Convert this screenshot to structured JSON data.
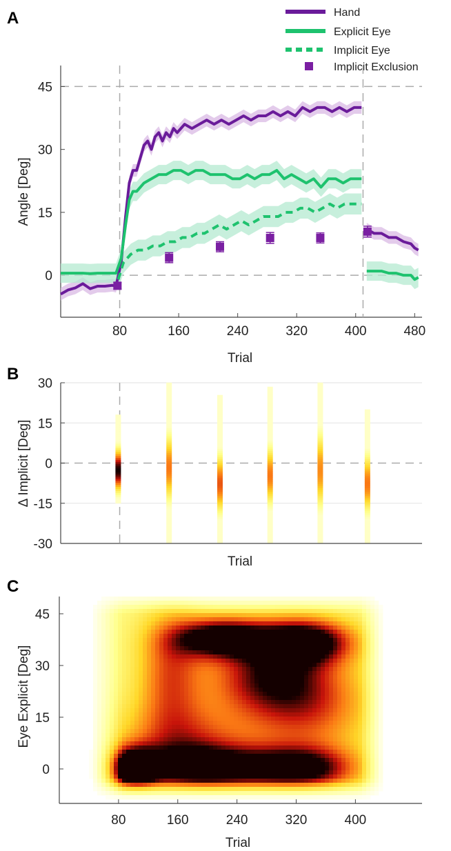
{
  "chart_data": [
    {
      "panel": "A",
      "type": "line",
      "xlabel": "Trial",
      "ylabel": "Angle [Deg]",
      "xlim": [
        0,
        490
      ],
      "ylim": [
        -10,
        50
      ],
      "x_ticks": [
        "80",
        "160",
        "240",
        "320",
        "400",
        "480"
      ],
      "y_ticks": [
        "45",
        "30",
        "15",
        "0"
      ],
      "reference_lines": {
        "x": [
          80,
          410
        ],
        "y": [
          45,
          0
        ]
      },
      "legend_placement": "top-right",
      "colors": {
        "hand": "#6a1b9a",
        "hand_band": "#d9b9e4",
        "eye": "#1ec26e",
        "eye_band": "#b4ead0",
        "exclusion": "#7a1fa2"
      },
      "series": [
        {
          "name": "Hand",
          "style": "solid",
          "points": [
            [
              0,
              -4.5
            ],
            [
              10,
              -3.5
            ],
            [
              20,
              -3
            ],
            [
              30,
              -2
            ],
            [
              40,
              -3.2
            ],
            [
              50,
              -2.6
            ],
            [
              60,
              -2.6
            ],
            [
              70,
              -2.4
            ],
            [
              75,
              -2.6
            ],
            [
              82,
              3
            ],
            [
              88,
              14
            ],
            [
              93,
              22
            ],
            [
              98,
              25
            ],
            [
              103,
              25
            ],
            [
              108,
              28
            ],
            [
              113,
              31
            ],
            [
              118,
              32
            ],
            [
              123,
              30
            ],
            [
              128,
              33
            ],
            [
              133,
              34
            ],
            [
              138,
              32
            ],
            [
              143,
              34
            ],
            [
              148,
              33
            ],
            [
              153,
              35
            ],
            [
              158,
              34
            ],
            [
              163,
              35
            ],
            [
              168,
              36
            ],
            [
              178,
              35
            ],
            [
              188,
              36
            ],
            [
              198,
              37
            ],
            [
              208,
              36
            ],
            [
              218,
              37
            ],
            [
              228,
              36
            ],
            [
              238,
              37
            ],
            [
              248,
              38
            ],
            [
              258,
              37
            ],
            [
              268,
              38
            ],
            [
              278,
              38
            ],
            [
              288,
              39
            ],
            [
              298,
              38
            ],
            [
              308,
              39
            ],
            [
              318,
              38
            ],
            [
              328,
              40
            ],
            [
              338,
              39
            ],
            [
              348,
              40
            ],
            [
              358,
              40
            ],
            [
              368,
              39
            ],
            [
              378,
              40
            ],
            [
              388,
              39
            ],
            [
              398,
              40
            ],
            [
              408,
              40
            ],
            [
              415,
              11
            ],
            [
              425,
              10
            ],
            [
              435,
              10
            ],
            [
              445,
              9
            ],
            [
              455,
              9
            ],
            [
              465,
              8
            ],
            [
              475,
              7.5
            ],
            [
              480,
              6.5
            ],
            [
              485,
              6
            ]
          ],
          "band_halfwidth": 1.5
        },
        {
          "name": "Explicit Eye",
          "style": "solid",
          "points": [
            [
              0,
              0.5
            ],
            [
              10,
              0.5
            ],
            [
              20,
              0.5
            ],
            [
              30,
              0.5
            ],
            [
              40,
              0.4
            ],
            [
              50,
              0.5
            ],
            [
              60,
              0.5
            ],
            [
              70,
              0.5
            ],
            [
              75,
              0.5
            ],
            [
              82,
              4
            ],
            [
              88,
              12
            ],
            [
              93,
              18
            ],
            [
              98,
              20
            ],
            [
              103,
              20
            ],
            [
              113,
              22
            ],
            [
              123,
              23
            ],
            [
              133,
              24
            ],
            [
              143,
              24
            ],
            [
              153,
              25
            ],
            [
              163,
              25
            ],
            [
              173,
              24
            ],
            [
              183,
              25
            ],
            [
              193,
              25
            ],
            [
              203,
              24
            ],
            [
              213,
              24
            ],
            [
              223,
              24
            ],
            [
              233,
              23
            ],
            [
              243,
              23
            ],
            [
              253,
              24
            ],
            [
              263,
              23
            ],
            [
              273,
              24
            ],
            [
              283,
              24
            ],
            [
              293,
              25
            ],
            [
              303,
              23
            ],
            [
              313,
              24
            ],
            [
              323,
              23
            ],
            [
              333,
              22
            ],
            [
              343,
              23
            ],
            [
              353,
              21
            ],
            [
              363,
              23
            ],
            [
              373,
              23
            ],
            [
              383,
              22
            ],
            [
              393,
              23
            ],
            [
              403,
              23
            ],
            [
              408,
              23
            ],
            [
              415,
              1
            ],
            [
              425,
              1
            ],
            [
              435,
              1
            ],
            [
              445,
              0.5
            ],
            [
              455,
              0.5
            ],
            [
              465,
              0
            ],
            [
              475,
              0
            ],
            [
              480,
              -1
            ],
            [
              485,
              -0.5
            ]
          ],
          "band_halfwidth": 2.3
        },
        {
          "name": "Implicit Eye",
          "style": "dashed",
          "points": [
            [
              78,
              -1
            ],
            [
              85,
              3
            ],
            [
              95,
              5
            ],
            [
              105,
              6
            ],
            [
              115,
              6
            ],
            [
              125,
              7
            ],
            [
              135,
              7
            ],
            [
              145,
              8
            ],
            [
              155,
              8
            ],
            [
              165,
              9
            ],
            [
              175,
              9
            ],
            [
              185,
              10
            ],
            [
              195,
              10
            ],
            [
              205,
              11
            ],
            [
              215,
              12
            ],
            [
              225,
              11
            ],
            [
              235,
              12
            ],
            [
              245,
              13
            ],
            [
              255,
              12
            ],
            [
              265,
              13
            ],
            [
              275,
              14
            ],
            [
              285,
              14
            ],
            [
              295,
              14
            ],
            [
              305,
              15
            ],
            [
              315,
              15
            ],
            [
              325,
              16
            ],
            [
              335,
              16
            ],
            [
              345,
              15
            ],
            [
              355,
              16
            ],
            [
              365,
              17
            ],
            [
              375,
              16
            ],
            [
              385,
              17
            ],
            [
              395,
              17
            ],
            [
              405,
              17
            ],
            [
              408,
              17
            ]
          ],
          "band_halfwidth": 2.5
        },
        {
          "name": "Implicit Exclusion",
          "style": "markers",
          "points": [
            [
              77,
              -2.5
            ],
            [
              147,
              4.2
            ],
            [
              216,
              6.8
            ],
            [
              284,
              8.9
            ],
            [
              352,
              8.9
            ],
            [
              416,
              10.4
            ]
          ],
          "errors": [
            0.8,
            1.2,
            1.2,
            1.3,
            1.2,
            1.3
          ]
        }
      ]
    },
    {
      "panel": "B",
      "type": "heatmap",
      "xlabel": "Trial",
      "ylabel": "Δ Implicit [Deg]",
      "ylim": [
        -30,
        30
      ],
      "y_ticks": [
        "30",
        "15",
        "0",
        "-15",
        "-30"
      ],
      "columns": [
        {
          "x": 78,
          "center": -3,
          "spread": 5,
          "peak": 1.0,
          "ymin": -15,
          "ymax": 18
        },
        {
          "x": 147,
          "center": -2,
          "spread": 8,
          "peak": 0.62,
          "ymin": -30,
          "ymax": 30
        },
        {
          "x": 216,
          "center": -8,
          "spread": 7,
          "peak": 0.68,
          "ymin": -30,
          "ymax": 25
        },
        {
          "x": 284,
          "center": -5,
          "spread": 7,
          "peak": 0.62,
          "ymin": -30,
          "ymax": 28
        },
        {
          "x": 352,
          "center": -3,
          "spread": 9,
          "peak": 0.58,
          "ymin": -30,
          "ymax": 30
        },
        {
          "x": 416,
          "center": -8,
          "spread": 7,
          "peak": 0.62,
          "ymin": -30,
          "ymax": 20
        }
      ]
    },
    {
      "panel": "C",
      "type": "heatmap",
      "xlabel": "Trial",
      "ylabel": "Eye Explicit [Deg]",
      "xlim": [
        0,
        490
      ],
      "ylim": [
        -10,
        50
      ],
      "x_ticks": [
        "80",
        "160",
        "240",
        "320",
        "400"
      ],
      "y_ticks": [
        "45",
        "30",
        "15",
        "0"
      ]
    }
  ]
}
